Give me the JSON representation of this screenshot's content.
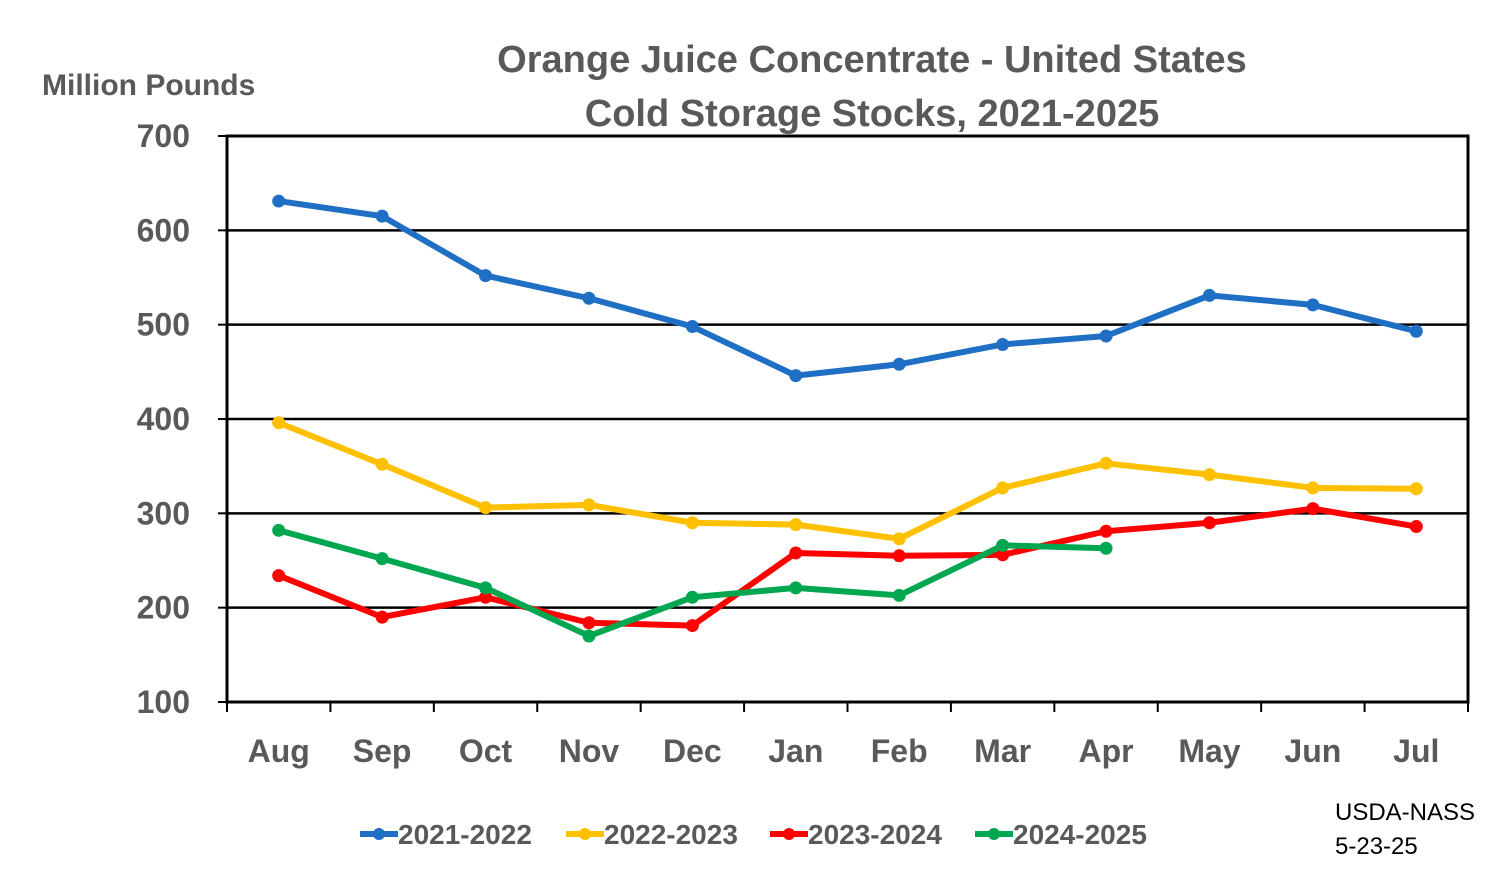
{
  "chart_data": {
    "type": "line",
    "title": "Orange Juice Concentrate - United States",
    "subtitle": "Cold Storage Stocks, 2021-2025",
    "ylabel": "Million Pounds",
    "xlabel": "",
    "categories": [
      "Aug",
      "Sep",
      "Oct",
      "Nov",
      "Dec",
      "Jan",
      "Feb",
      "Mar",
      "Apr",
      "May",
      "Jun",
      "Jul"
    ],
    "ylim": [
      100,
      700
    ],
    "yticks": [
      100,
      200,
      300,
      400,
      500,
      600,
      700
    ],
    "grid": true,
    "legend_position": "bottom",
    "series": [
      {
        "name": "2021-2022",
        "color": "#1f6fc5",
        "values": [
          631,
          615,
          552,
          528,
          498,
          446,
          458,
          479,
          488,
          531,
          521,
          493
        ]
      },
      {
        "name": "2022-2023",
        "color": "#ffc000",
        "values": [
          396,
          352,
          306,
          309,
          290,
          288,
          273,
          327,
          353,
          341,
          327,
          326
        ]
      },
      {
        "name": "2023-2024",
        "color": "#ff0000",
        "values": [
          234,
          190,
          211,
          184,
          181,
          258,
          255,
          256,
          281,
          290,
          305,
          286
        ]
      },
      {
        "name": "2024-2025",
        "color": "#00a650",
        "values": [
          282,
          252,
          221,
          170,
          211,
          221,
          213,
          266,
          263,
          null,
          null,
          null
        ]
      }
    ],
    "annotations": [
      "USDA-NASS",
      "5-23-25"
    ]
  }
}
